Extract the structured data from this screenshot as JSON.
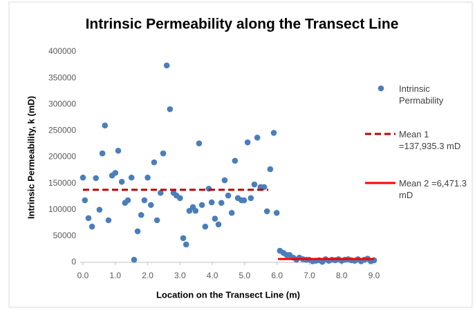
{
  "chart_data": {
    "type": "scatter",
    "title": "Intrinsic Permeability along the Transect Line",
    "x_label": "Location on the Transect Line (m)",
    "y_label": "Intrinsic Permeability, k (mD)",
    "xlim": [
      0,
      9
    ],
    "ylim": [
      0,
      400000
    ],
    "xticks": [
      {
        "value": 0,
        "label": "0.0"
      },
      {
        "value": 1,
        "label": "1.0"
      },
      {
        "value": 2,
        "label": "2.0"
      },
      {
        "value": 3,
        "label": "3.0"
      },
      {
        "value": 4,
        "label": "4.0"
      },
      {
        "value": 5,
        "label": "5.0"
      },
      {
        "value": 6,
        "label": "6.0"
      },
      {
        "value": 7,
        "label": "7.0"
      },
      {
        "value": 8,
        "label": "8.0"
      },
      {
        "value": 9,
        "label": "9.0"
      }
    ],
    "yticks": [
      0,
      50000,
      100000,
      150000,
      200000,
      250000,
      300000,
      350000,
      400000
    ],
    "grid": false,
    "legend": "right",
    "series": [
      {
        "name": "Intrinsic Permability",
        "type": "scatter",
        "color": "#4a7ebb",
        "x": [
          0.0,
          0.06,
          0.17,
          0.28,
          0.4,
          0.51,
          0.6,
          0.68,
          0.79,
          0.9,
          1.0,
          1.09,
          1.2,
          1.3,
          1.39,
          1.5,
          1.58,
          1.69,
          1.8,
          1.9,
          2.0,
          2.1,
          2.2,
          2.29,
          2.4,
          2.48,
          2.59,
          2.69,
          2.8,
          2.89,
          3.0,
          3.1,
          3.19,
          3.29,
          3.4,
          3.48,
          3.59,
          3.68,
          3.78,
          3.89,
          3.98,
          4.08,
          4.19,
          4.28,
          4.38,
          4.49,
          4.6,
          4.7,
          4.79,
          4.9,
          4.98,
          5.09,
          5.19,
          5.3,
          5.39,
          5.49,
          5.6,
          5.69,
          5.79,
          5.9,
          5.99,
          6.09,
          6.2,
          6.3,
          6.39,
          6.5,
          6.6,
          6.69,
          6.8,
          6.9,
          6.99,
          7.1,
          7.2,
          7.3,
          7.4,
          7.5,
          7.6,
          7.7,
          7.8,
          7.9,
          8.0,
          8.1,
          8.2,
          8.3,
          8.4,
          8.5,
          8.6,
          8.7,
          8.8,
          8.9,
          9.0
        ],
        "values": [
          161000,
          118000,
          84000,
          68000,
          160000,
          100000,
          207000,
          260000,
          80000,
          165000,
          170000,
          212000,
          153000,
          113000,
          118000,
          161000,
          5000,
          59000,
          90000,
          118000,
          161000,
          109000,
          190000,
          80000,
          132000,
          207000,
          374000,
          291000,
          132000,
          127000,
          122000,
          46000,
          34000,
          98000,
          105000,
          98000,
          226000,
          109000,
          68000,
          140000,
          114000,
          83000,
          72000,
          113000,
          156000,
          127000,
          94000,
          193000,
          122000,
          118000,
          118000,
          228000,
          122000,
          148000,
          237000,
          143000,
          143000,
          97000,
          177000,
          246000,
          94000,
          22000,
          18000,
          14000,
          14000,
          9000,
          5000,
          9000,
          6000,
          5000,
          5000,
          2000,
          3000,
          4000,
          1000,
          6000,
          3000,
          5000,
          4000,
          6000,
          3000,
          5000,
          6000,
          4000,
          3000,
          6000,
          2000,
          5000,
          7000,
          2000,
          4000
        ]
      },
      {
        "name": "Mean 1 =137,935.3 mD",
        "type": "line",
        "dashed": true,
        "color": "#c00000",
        "x": [
          0,
          5.73
        ],
        "values": [
          137935.3,
          137935.3
        ]
      },
      {
        "name": "Mean 2 =6,471.3 mD",
        "type": "line",
        "dashed": false,
        "color": "#ff0000",
        "x": [
          6.03,
          9.0
        ],
        "values": [
          6471.3,
          6471.3
        ]
      }
    ]
  }
}
